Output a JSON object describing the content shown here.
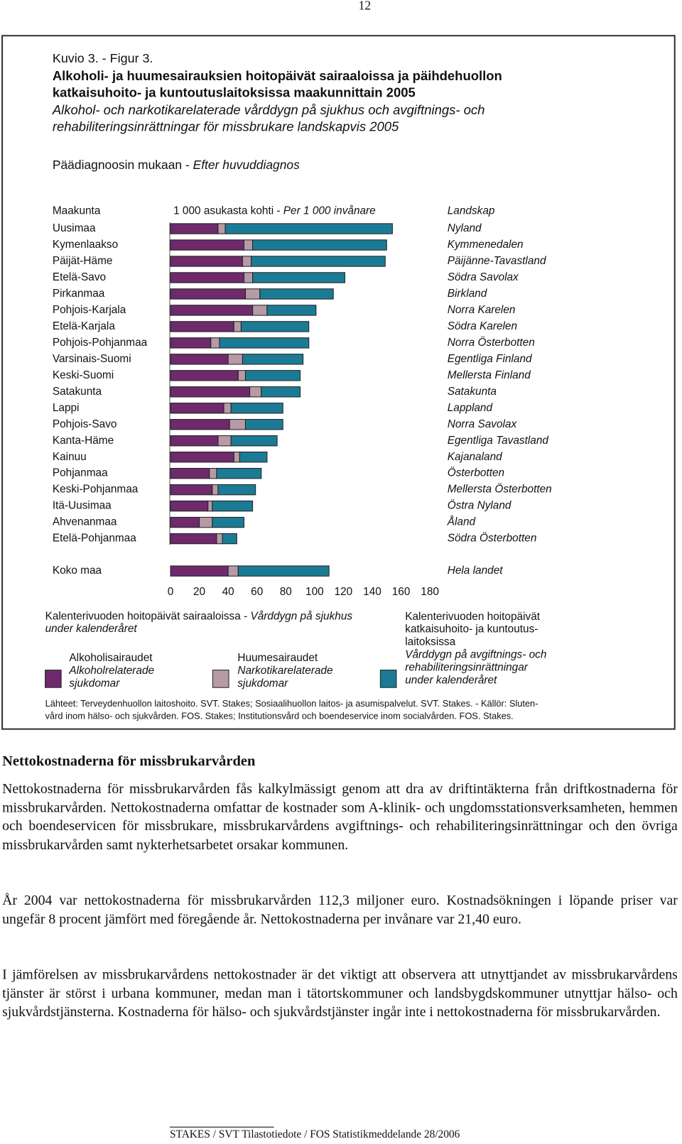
{
  "page_number": "12",
  "figure": {
    "label": "Kuvio 3. - Figur 3.",
    "title_fi": [
      "Alkoholi- ja huumesairauksien hoitopäivät sairaaloissa ja päihdehuollon",
      "katkaisuhoito- ja kuntoutuslaitoksissa maakunnittain 2005"
    ],
    "title_sv": [
      "Alkohol- och narkotikarelaterade vårddygn på sjukhus och avgiftnings- och",
      "rehabiliteringsinrättningar för missbrukare landskapvis 2005"
    ],
    "subtitle_fi": "Päädiagnoosin mukaan - ",
    "subtitle_sv": "Efter huvuddiagnos",
    "sources": [
      "Lähteet: Terveydenhuollon laitoshoito. SVT. Stakes; Sosiaalihuollon laitos- ja asumispalvelut. SVT. Stakes. - Källör: Sluten-",
      "vård inom hälso- och sjukvården. FOS. Stakes; Institutionsvård och boendeservice inom socialvården. FOS. Stakes."
    ]
  },
  "chart_data": {
    "type": "stacked-bar-horizontal",
    "left_header": "Maakunta",
    "unit_fi": "1 000 asukasta kohti - ",
    "unit_sv": "Per 1 000 invånare",
    "right_header": "Landskap",
    "categories": [
      "Uusimaa",
      "Kymenlaakso",
      "Päijät-Häme",
      "Etelä-Savo",
      "Pirkanmaa",
      "Pohjois-Karjala",
      "Etelä-Karjala",
      "Pohjois-Pohjanmaa",
      "Varsinais-Suomi",
      "Keski-Suomi",
      "Satakunta",
      "Lappi",
      "Pohjois-Savo",
      "Kanta-Häme",
      "Kainuu",
      "Pohjanmaa",
      "Keski-Pohjanmaa",
      "Itä-Uusimaa",
      "Ahvenanmaa",
      "Etelä-Pohjanmaa",
      "Koko maa"
    ],
    "categories_sv": [
      "Nyland",
      "Kymmenedalen",
      "Päijänne-Tavastland",
      "Södra Savolax",
      "Birkland",
      "Norra Karelen",
      "Södra Karelen",
      "Norra Österbotten",
      "Egentliga Finland",
      "Mellersta Finland",
      "Satakunta",
      "Lappland",
      "Norra Savolax",
      "Egentliga Tavastland",
      "Kajanaland",
      "Österbotten",
      "Mellersta Österbotten",
      "Östra Nyland",
      "Åland",
      "Södra Österbotten",
      "Hela landet"
    ],
    "hospital_heading_fi": "Kalenterivuoden hoitopäivät sairaaloissa - ",
    "hospital_heading_sv": [
      "Vårddygn på sjukhus",
      "under kalenderåret"
    ],
    "series": [
      {
        "name": "Alkoholisairaudet",
        "name_sv": [
          "Alkoholrelaterade",
          "sjukdomar"
        ],
        "color": "#6e2a6c",
        "values": [
          33,
          51,
          50,
          51,
          52,
          57,
          44,
          28,
          40,
          47,
          55,
          37,
          41,
          33,
          44,
          27,
          29,
          26,
          20,
          32,
          40
        ]
      },
      {
        "name": "Huumesairaudet",
        "name_sv": [
          "Narkotikarelaterade",
          "sjukdomar"
        ],
        "color": "#b79aa5",
        "values": [
          5,
          6,
          6,
          6,
          10,
          10,
          5,
          6,
          10,
          5,
          8,
          5,
          11,
          9,
          4,
          5,
          4,
          3,
          9,
          4,
          7
        ]
      },
      {
        "name": [
          "Kalenterivuoden hoitopäivät",
          "katkaisuhoito- ja kuntoutus-",
          "laitoksissa"
        ],
        "name_sv": [
          "Vårddygn på avgiftnings- och",
          "rehabiliteringsinrättningar",
          "under kalenderåret"
        ],
        "color": "#1b7b95",
        "values": [
          116,
          93,
          93,
          64,
          51,
          34,
          47,
          62,
          42,
          38,
          27,
          36,
          26,
          32,
          19,
          31,
          26,
          28,
          22,
          10,
          63
        ]
      }
    ],
    "xlim": [
      0,
      180
    ],
    "xticks": [
      0,
      20,
      40,
      60,
      80,
      100,
      120,
      140,
      160,
      180
    ]
  },
  "section": {
    "heading": "Nettokostnaderna för missbrukarvården",
    "paragraphs": [
      "Nettokostnaderna för missbrukarvården fås kalkylmässigt genom att dra av driftintäkterna från driftkostnaderna för missbrukarvården. Nettokostnaderna omfattar de kostnader som A-klinik- och ungdomsstationsverksamheten, hemmen och boendeservicen för missbrukare, missbrukarvårdens avgiftnings- och rehabiliteringsinrättningar och den övriga missbrukarvården samt nykterhetsarbetet orsakar kommunen.",
      "År 2004 var nettokostnaderna för missbrukarvården 112,3 miljoner euro. Kostnadsökningen i löpande priser var ungefär 8 procent jämfört med föregående år. Nettokostnaderna per invånare var 21,40 euro.",
      "I jämförelsen av missbrukarvårdens nettokostnader är det viktigt att observera att utnyttjandet av missbrukarvårdens tjänster är störst i urbana kommuner, medan man i tätortskommuner och landsbygdskommuner utnyttjar hälso- och sjukvårdstjänsterna. Kostnaderna för hälso- och sjukvårdstjänster ingår inte i nettokostnaderna för missbrukarvården."
    ]
  },
  "footer": "STAKES / SVT Tilastotiedote / FOS Statistikmeddelande 28/2006"
}
